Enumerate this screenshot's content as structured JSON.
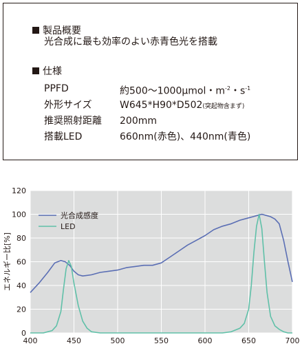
{
  "spec": {
    "overview_heading": "製品概要",
    "overview_text": "光合成に最も効率のよい赤青色光を搭載",
    "spec_heading": "仕様",
    "rows": [
      {
        "key": "PPFD",
        "value": "約500〜1000μmol・m",
        "sup1": "-2",
        "mid": "・s",
        "sup2": "-1"
      },
      {
        "key": "外形サイズ",
        "value": "W645*H90*D502",
        "note": "(突起物含まず)"
      },
      {
        "key": "推奨照射距離",
        "value": "200mm"
      },
      {
        "key": "搭載LED",
        "value": "660nm(赤色)、440nm(青色)"
      }
    ]
  },
  "chart_data": {
    "type": "line",
    "ylabel": "エネルギー比[%]",
    "xlabel": "",
    "xlim": [
      400,
      700
    ],
    "ylim": [
      0,
      120
    ],
    "xticks": [
      400,
      450,
      500,
      550,
      600,
      650,
      700
    ],
    "yticks": [
      0,
      20,
      40,
      60,
      80,
      100,
      120
    ],
    "grid": true,
    "legend_position": "top-left",
    "background": "#dcdddd",
    "series": [
      {
        "name": "光合成感度",
        "color": "#5a6eb4",
        "x": [
          400,
          410,
          420,
          428,
          435,
          440,
          445,
          450,
          455,
          460,
          470,
          480,
          490,
          500,
          510,
          520,
          530,
          540,
          550,
          560,
          570,
          580,
          590,
          600,
          610,
          620,
          630,
          640,
          650,
          655,
          660,
          665,
          670,
          675,
          680,
          685,
          690,
          695,
          700
        ],
        "y": [
          34,
          42,
          51,
          59,
          61,
          60,
          57,
          52,
          49,
          48,
          49,
          51,
          52,
          53,
          55,
          56,
          57,
          57,
          59,
          64,
          69,
          74,
          78,
          82,
          87,
          90,
          92,
          95,
          97,
          98,
          99,
          100,
          99,
          98,
          96,
          92,
          78,
          60,
          43
        ]
      },
      {
        "name": "LED",
        "color": "#5fc0a8",
        "x": [
          400,
          415,
          420,
          425,
          430,
          435,
          438,
          441,
          444,
          447,
          450,
          455,
          460,
          465,
          470,
          480,
          500,
          550,
          600,
          620,
          630,
          640,
          645,
          650,
          653,
          656,
          659,
          662,
          665,
          668,
          671,
          675,
          680,
          685,
          690,
          695,
          700
        ],
        "y": [
          0,
          0,
          1,
          2,
          6,
          18,
          37,
          54,
          61,
          56,
          42,
          23,
          10,
          4,
          1,
          0,
          0,
          0,
          0,
          0,
          1,
          4,
          8,
          20,
          40,
          68,
          90,
          100,
          88,
          60,
          34,
          14,
          6,
          3,
          1,
          0,
          0
        ]
      }
    ]
  }
}
